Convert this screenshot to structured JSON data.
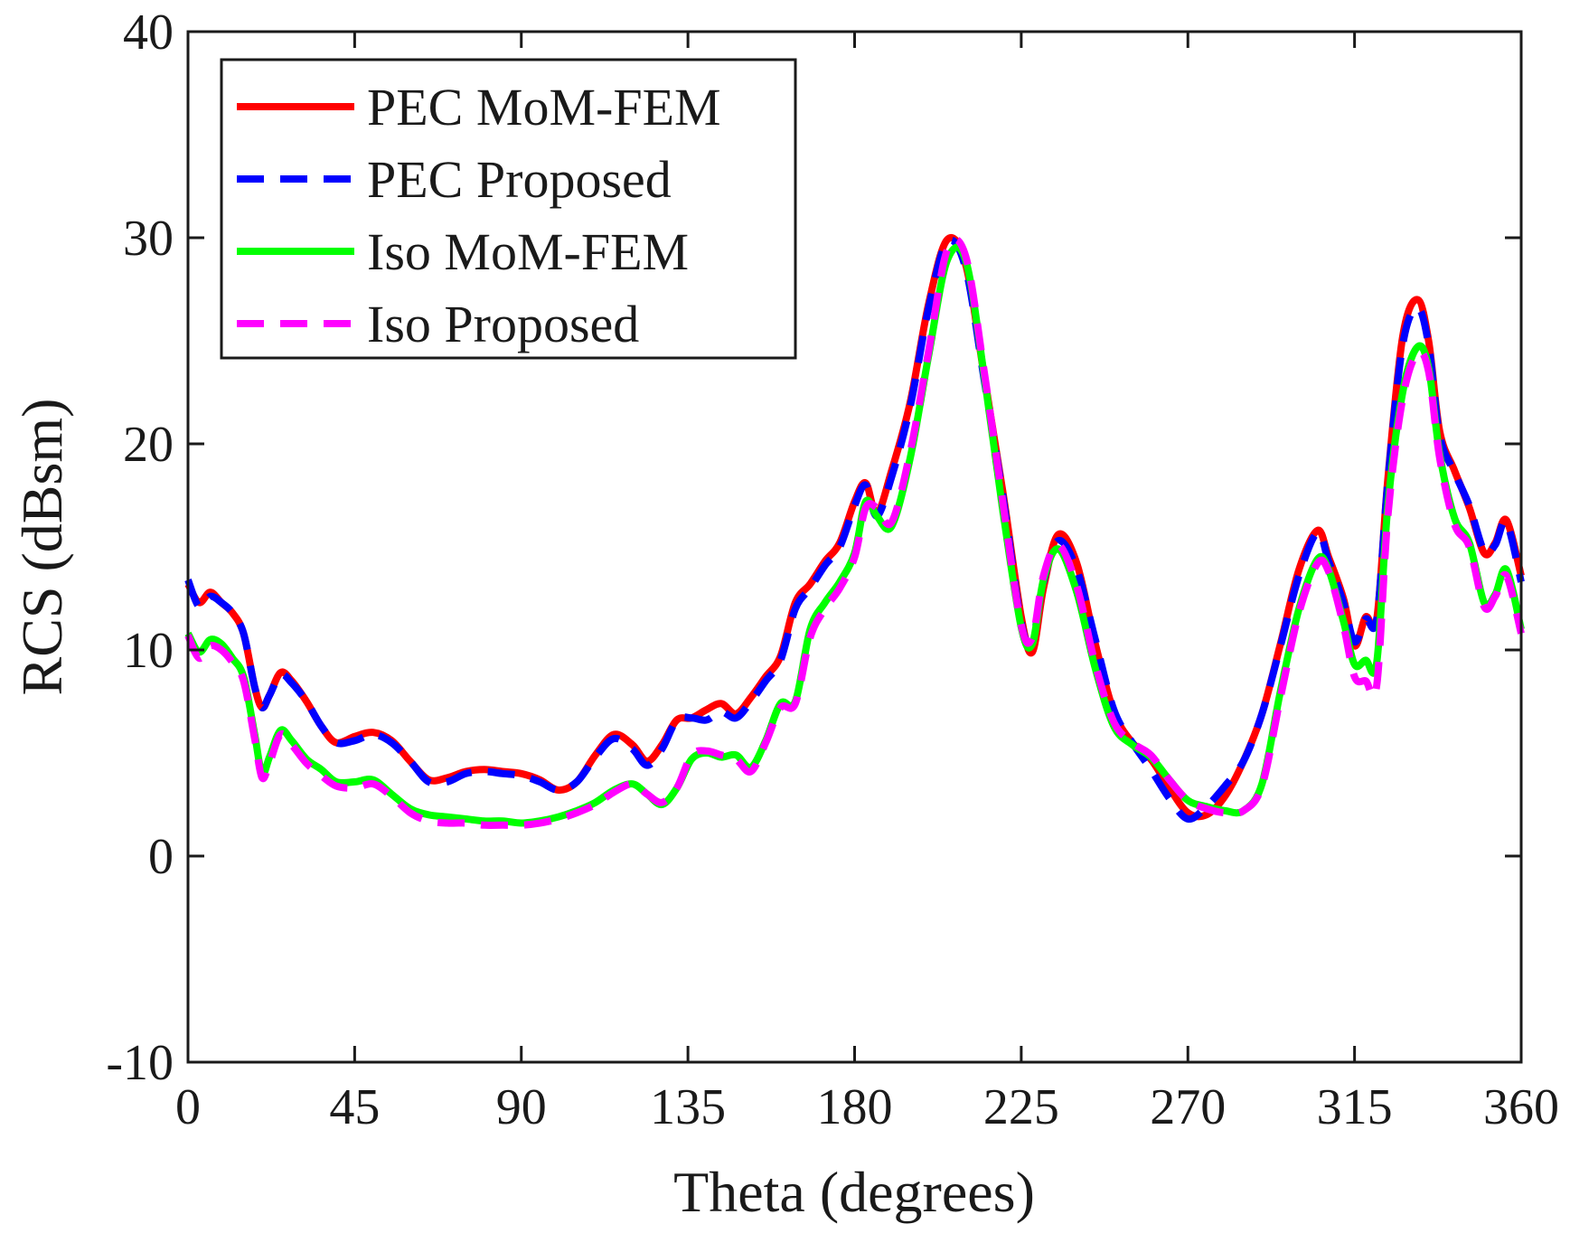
{
  "chart_data": {
    "type": "line",
    "title": "",
    "xlabel": "Theta (degrees)",
    "ylabel": "RCS (dBsm)",
    "xlim": [
      0,
      360
    ],
    "ylim": [
      -10,
      40
    ],
    "xticks": [
      0,
      45,
      90,
      135,
      180,
      225,
      270,
      315,
      360
    ],
    "yticks": [
      -10,
      0,
      10,
      20,
      30,
      40
    ],
    "grid": false,
    "legend_position": "top-left",
    "series": [
      {
        "name": "PEC MoM-FEM",
        "color": "#ff0000",
        "style": "solid",
        "x": [
          0,
          3,
          6,
          9,
          12,
          15,
          18,
          20,
          22,
          25,
          28,
          32,
          36,
          40,
          45,
          50,
          55,
          60,
          65,
          70,
          75,
          80,
          85,
          90,
          95,
          100,
          105,
          110,
          115,
          120,
          124,
          128,
          132,
          136,
          140,
          144,
          148,
          152,
          156,
          160,
          164,
          168,
          172,
          176,
          180,
          183,
          186,
          190,
          195,
          200,
          205,
          210,
          215,
          220,
          225,
          228,
          231,
          235,
          240,
          245,
          250,
          255,
          260,
          265,
          270,
          275,
          280,
          285,
          290,
          295,
          300,
          305,
          308,
          312,
          315,
          318,
          321,
          324,
          328,
          332,
          335,
          338,
          342,
          346,
          350,
          353,
          356,
          360
        ],
        "values": [
          13.2,
          12.3,
          12.8,
          12.3,
          11.8,
          10.8,
          8.2,
          7.2,
          7.8,
          8.9,
          8.5,
          7.5,
          6.3,
          5.5,
          5.8,
          6.0,
          5.6,
          4.6,
          3.7,
          3.8,
          4.1,
          4.2,
          4.1,
          4.0,
          3.7,
          3.2,
          3.6,
          4.9,
          5.9,
          5.4,
          4.6,
          5.4,
          6.6,
          6.7,
          7.1,
          7.4,
          6.9,
          7.7,
          8.7,
          9.7,
          12.3,
          13.2,
          14.3,
          15.2,
          17.2,
          18.1,
          16.6,
          18.7,
          22.0,
          26.8,
          29.9,
          28.7,
          23.3,
          17.7,
          11.6,
          9.9,
          13.0,
          15.6,
          14.2,
          10.3,
          7.0,
          5.5,
          4.7,
          3.3,
          2.1,
          2.0,
          2.9,
          4.6,
          6.9,
          10.3,
          13.9,
          15.8,
          14.5,
          12.5,
          10.2,
          11.6,
          11.5,
          18.3,
          25.2,
          27.0,
          25.0,
          20.6,
          18.7,
          16.9,
          14.7,
          15.2,
          16.3,
          13.6
        ]
      },
      {
        "name": "PEC Proposed",
        "color": "#0000ff",
        "style": "dashed",
        "x": [
          0,
          3,
          6,
          9,
          12,
          15,
          18,
          20,
          22,
          25,
          28,
          32,
          36,
          40,
          45,
          50,
          55,
          60,
          65,
          70,
          75,
          80,
          85,
          90,
          95,
          100,
          105,
          110,
          115,
          120,
          124,
          128,
          132,
          136,
          140,
          144,
          148,
          152,
          156,
          160,
          164,
          168,
          172,
          176,
          180,
          183,
          186,
          190,
          195,
          200,
          205,
          210,
          215,
          220,
          225,
          228,
          231,
          235,
          240,
          245,
          250,
          255,
          260,
          265,
          270,
          275,
          280,
          285,
          290,
          295,
          300,
          305,
          308,
          312,
          315,
          318,
          321,
          324,
          328,
          332,
          335,
          338,
          342,
          346,
          350,
          353,
          356,
          360
        ],
        "values": [
          13.4,
          12.1,
          12.6,
          12.3,
          11.8,
          10.8,
          8.2,
          7.2,
          7.8,
          8.8,
          8.4,
          7.5,
          6.3,
          5.5,
          5.6,
          5.9,
          5.5,
          4.6,
          3.6,
          3.6,
          4.0,
          4.1,
          4.0,
          3.9,
          3.6,
          3.2,
          3.6,
          4.8,
          5.7,
          5.2,
          4.4,
          5.2,
          6.6,
          6.7,
          6.6,
          7.0,
          6.7,
          7.5,
          8.5,
          9.5,
          12.0,
          13.0,
          14.1,
          15.0,
          17.0,
          18.0,
          16.5,
          18.4,
          21.8,
          26.6,
          29.8,
          28.5,
          23.1,
          17.5,
          11.3,
          10.5,
          13.3,
          15.3,
          13.9,
          10.5,
          7.1,
          5.5,
          4.2,
          2.8,
          1.8,
          2.4,
          3.4,
          4.6,
          6.9,
          10.2,
          13.6,
          15.7,
          14.3,
          12.3,
          10.4,
          11.5,
          11.5,
          18.2,
          24.8,
          26.6,
          24.8,
          20.4,
          18.6,
          17.0,
          14.8,
          15.1,
          16.2,
          13.3
        ]
      },
      {
        "name": "Iso MoM-FEM",
        "color": "#00ff00",
        "style": "solid",
        "x": [
          0,
          3,
          6,
          9,
          12,
          15,
          18,
          20,
          22,
          25,
          28,
          32,
          36,
          40,
          45,
          50,
          55,
          60,
          65,
          70,
          75,
          80,
          85,
          90,
          95,
          100,
          105,
          110,
          115,
          120,
          124,
          128,
          132,
          136,
          140,
          144,
          148,
          152,
          156,
          160,
          164,
          168,
          172,
          176,
          180,
          183,
          186,
          190,
          195,
          200,
          205,
          210,
          215,
          220,
          225,
          228,
          231,
          235,
          240,
          245,
          250,
          255,
          260,
          265,
          270,
          275,
          280,
          285,
          290,
          295,
          300,
          305,
          308,
          312,
          315,
          318,
          321,
          324,
          328,
          332,
          335,
          338,
          342,
          346,
          350,
          353,
          356,
          360
        ],
        "values": [
          10.8,
          9.9,
          10.5,
          10.3,
          9.6,
          8.7,
          5.9,
          4.0,
          4.8,
          6.1,
          5.6,
          4.7,
          4.2,
          3.6,
          3.6,
          3.7,
          3.0,
          2.3,
          2.0,
          1.9,
          1.8,
          1.7,
          1.7,
          1.6,
          1.7,
          1.9,
          2.2,
          2.6,
          3.2,
          3.5,
          3.0,
          2.5,
          3.3,
          4.7,
          5.0,
          4.8,
          4.9,
          4.3,
          5.6,
          7.4,
          7.5,
          11.0,
          12.3,
          13.3,
          14.7,
          17.2,
          16.5,
          16.0,
          19.3,
          24.3,
          28.9,
          28.9,
          23.3,
          16.8,
          11.1,
          10.3,
          13.4,
          14.9,
          12.8,
          9.1,
          6.3,
          5.4,
          4.8,
          3.7,
          2.7,
          2.4,
          2.2,
          2.2,
          3.5,
          8.0,
          12.0,
          14.4,
          13.9,
          11.4,
          9.3,
          9.5,
          9.4,
          17.0,
          22.5,
          24.7,
          23.7,
          19.5,
          16.4,
          15.2,
          12.3,
          12.7,
          13.9,
          11.0
        ]
      },
      {
        "name": "Iso Proposed",
        "color": "#ff00ff",
        "style": "dashed",
        "x": [
          0,
          3,
          6,
          9,
          12,
          15,
          18,
          20,
          22,
          25,
          28,
          32,
          36,
          40,
          45,
          50,
          55,
          60,
          65,
          70,
          75,
          80,
          85,
          90,
          95,
          100,
          105,
          110,
          115,
          120,
          124,
          128,
          132,
          136,
          140,
          144,
          148,
          152,
          156,
          160,
          164,
          168,
          172,
          176,
          180,
          183,
          186,
          190,
          195,
          200,
          205,
          210,
          215,
          220,
          225,
          228,
          231,
          235,
          240,
          245,
          250,
          255,
          260,
          265,
          270,
          275,
          280,
          285,
          290,
          295,
          300,
          305,
          308,
          312,
          315,
          318,
          321,
          324,
          328,
          332,
          335,
          338,
          342,
          346,
          350,
          353,
          356,
          360
        ],
        "values": [
          10.7,
          9.6,
          10.2,
          10.0,
          9.4,
          8.5,
          5.7,
          3.8,
          4.5,
          5.9,
          5.4,
          4.5,
          3.9,
          3.4,
          3.3,
          3.5,
          2.9,
          2.1,
          1.7,
          1.6,
          1.6,
          1.5,
          1.5,
          1.5,
          1.6,
          1.8,
          2.1,
          2.5,
          3.1,
          3.5,
          3.0,
          2.6,
          3.3,
          4.9,
          5.1,
          4.9,
          4.7,
          4.1,
          5.5,
          7.2,
          7.4,
          10.6,
          12.0,
          13.0,
          14.5,
          16.9,
          16.9,
          16.2,
          19.6,
          24.5,
          29.4,
          29.1,
          23.5,
          17.2,
          11.2,
          10.6,
          13.6,
          15.1,
          13.1,
          9.3,
          6.5,
          5.5,
          4.9,
          3.7,
          2.7,
          2.3,
          2.1,
          2.2,
          3.4,
          7.7,
          11.8,
          14.2,
          13.8,
          11.2,
          8.7,
          8.5,
          8.3,
          16.5,
          22.2,
          24.4,
          23.5,
          19.3,
          16.1,
          15.0,
          12.1,
          12.6,
          13.6,
          10.8
        ]
      }
    ]
  }
}
